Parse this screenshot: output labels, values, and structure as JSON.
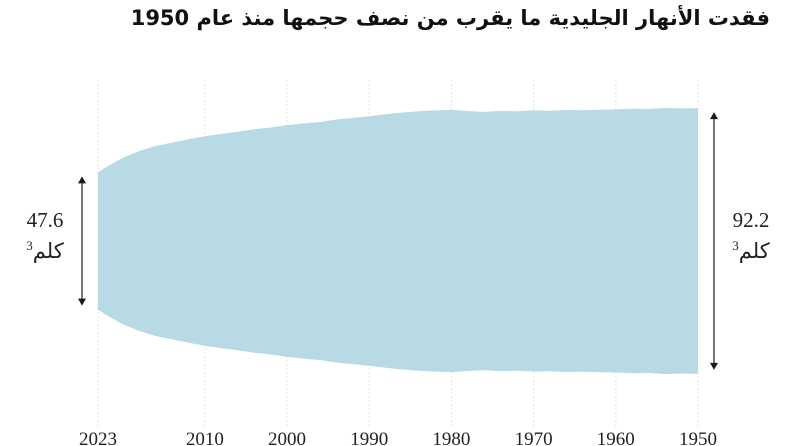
{
  "title": "فقدت الأنهار الجليدية ما يقرب من نصف حجمها منذ عام 1950",
  "start_label": {
    "value": "92.2",
    "unit": "كلم",
    "unit_sup": "3"
  },
  "end_label": {
    "value": "47.6",
    "unit": "كلم",
    "unit_sup": "3"
  },
  "colors": {
    "area": "#b7dae4",
    "grid": "#e3e3e3",
    "arrow": "#1a1a1a",
    "text": "#222222"
  },
  "chart_data": {
    "type": "area",
    "title": "فقدت الأنهار الجليدية ما يقرب من نصف حجمها منذ عام 1950",
    "xlabel": "",
    "ylabel": "",
    "x_axis_direction": "right-to-left",
    "xticks": [
      1950,
      1960,
      1970,
      1980,
      1990,
      2000,
      2010,
      2023
    ],
    "xlim": [
      1950,
      2023
    ],
    "grid": true,
    "series": [
      {
        "x": [
          1950,
          1952,
          1954,
          1956,
          1958,
          1960,
          1962,
          1964,
          1966,
          1968,
          1970,
          1972,
          1974,
          1976,
          1978,
          1980,
          1982,
          1984,
          1986,
          1988,
          1990,
          1992,
          1994,
          1996,
          1998,
          2000,
          2002,
          2004,
          2006,
          2008,
          2010,
          2012,
          2014,
          2016,
          2018,
          2020,
          2022,
          2023
        ],
        "y": [
          92.2,
          92.0,
          92.3,
          91.6,
          91.8,
          91.3,
          91.1,
          90.8,
          90.9,
          90.4,
          90.6,
          90.1,
          90.3,
          89.6,
          90.2,
          91.0,
          90.6,
          90.1,
          89.2,
          88.0,
          86.6,
          85.4,
          84.3,
          82.6,
          81.6,
          80.4,
          78.8,
          77.6,
          75.8,
          74.3,
          72.7,
          70.6,
          68.3,
          65.9,
          62.4,
          57.8,
          51.3,
          47.6
        ]
      }
    ],
    "annotations": [
      {
        "x": 1950,
        "text": "92.2 كلم³"
      },
      {
        "x": 2023,
        "text": "47.6 كلم³"
      }
    ]
  }
}
